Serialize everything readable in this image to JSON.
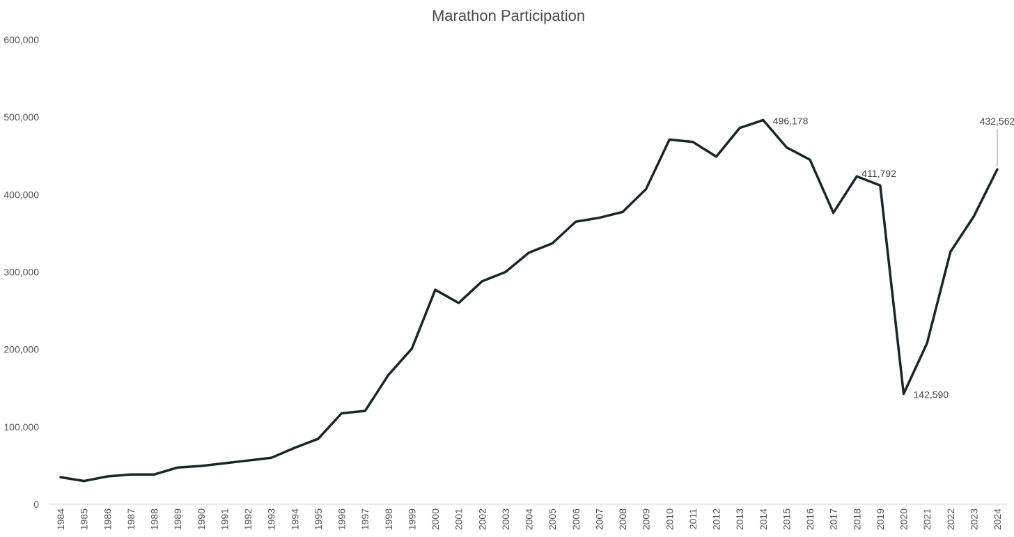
{
  "chart_data": {
    "type": "line",
    "title": "Marathon Participation",
    "xlabel": "",
    "ylabel": "",
    "ylim": [
      0,
      600000
    ],
    "yticks": [
      0,
      100000,
      200000,
      300000,
      400000,
      500000,
      600000
    ],
    "ytick_labels": [
      "0",
      "100,000",
      "200,000",
      "300,000",
      "400,000",
      "500,000",
      "600,000"
    ],
    "grid": false,
    "legend": "none",
    "line_color": "#17262b",
    "categories": [
      "1984",
      "1985",
      "1986",
      "1987",
      "1988",
      "1989",
      "1990",
      "1991",
      "1992",
      "1993",
      "1994",
      "1995",
      "1996",
      "1997",
      "1998",
      "1999",
      "2000",
      "2001",
      "2002",
      "2003",
      "2004",
      "2005",
      "2006",
      "2007",
      "2008",
      "2009",
      "2010",
      "2011",
      "2012",
      "2013",
      "2014",
      "2015",
      "2016",
      "2017",
      "2018",
      "2019",
      "2020",
      "2021",
      "2022",
      "2023",
      "2024"
    ],
    "series": [
      {
        "values": [
          35000,
          30000,
          36000,
          38500,
          38500,
          47500,
          49500,
          53000,
          56500,
          60000,
          73000,
          84500,
          117500,
          120500,
          167000,
          201000,
          277000,
          260000,
          288000,
          300000,
          325000,
          337000,
          365000,
          370000,
          377500,
          407000,
          471000,
          468000,
          449000,
          486000,
          496178,
          461000,
          445000,
          376500,
          423500,
          411792,
          142590,
          208000,
          326000,
          372000,
          432562
        ]
      }
    ],
    "annotations": [
      {
        "category": "2014",
        "text": "496,178",
        "placement": "right"
      },
      {
        "category": "2019",
        "text": "411,792",
        "placement": "above-left"
      },
      {
        "category": "2020",
        "text": "142,590",
        "placement": "right"
      },
      {
        "category": "2024",
        "text": "432,562",
        "placement": "above",
        "leader": true
      }
    ]
  }
}
